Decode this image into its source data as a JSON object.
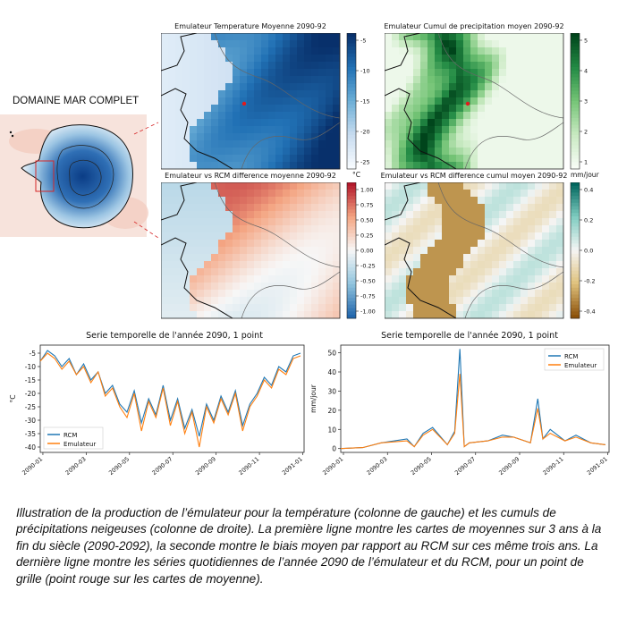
{
  "domain_label": "DOMAINE MAR COMPLET",
  "maps": [
    {
      "title": "Emulateur Temperature Moyenne 2090-92",
      "cbar_ticks": [
        "-5",
        "-10",
        "-15",
        "-20",
        "-25"
      ],
      "cbar_unit": "°C"
    },
    {
      "title": "Emulateur Cumul de precipitation moyen 2090-92",
      "cbar_ticks": [
        "5",
        "4",
        "3",
        "2",
        "1"
      ],
      "cbar_unit": "mm/jour"
    },
    {
      "title": "Emulateur vs RCM difference moyenne 2090-92",
      "cbar_ticks": [
        "1.00",
        "0.75",
        "0.50",
        "0.25",
        "0.00",
        "-0.25",
        "-0.50",
        "-0.75",
        "-1.00"
      ],
      "cbar_unit": ""
    },
    {
      "title": "Emulateur vs RCM difference cumul moyen 2090-92",
      "cbar_ticks": [
        "0.4",
        "0.2",
        "0.0",
        "-0.2",
        "-0.4"
      ],
      "cbar_unit": ""
    }
  ],
  "colors": {
    "blue_cmap": "#08306b",
    "green_cmap": "#00441b",
    "diverging_red": "#b2182b",
    "diverging_brown": "#8c510a",
    "rcm": "#1f77b4",
    "emulateur": "#ff7f0e",
    "marker": "#e31a1c"
  },
  "chart_data": [
    {
      "type": "line",
      "title": "Serie temporelle de l'année 2090, 1 point",
      "xlabel": "",
      "ylabel": "°C",
      "x_ticks": [
        "2090-01",
        "2090-03",
        "2090-05",
        "2090-07",
        "2090-09",
        "2090-11",
        "2091-01"
      ],
      "y_ticks": [
        -5,
        -10,
        -15,
        -20,
        -25,
        -30,
        -35,
        -40
      ],
      "ylim": [
        -42,
        -2
      ],
      "legend": "bottom-left",
      "legend_entries": [
        "RCM",
        "Emulateur"
      ],
      "x_days": [
        0,
        10,
        20,
        30,
        40,
        50,
        60,
        70,
        80,
        90,
        100,
        110,
        120,
        130,
        140,
        150,
        160,
        170,
        180,
        190,
        200,
        210,
        220,
        230,
        240,
        250,
        260,
        270,
        280,
        290,
        300,
        310,
        320,
        330,
        340,
        350,
        360
      ],
      "series": [
        {
          "name": "RCM",
          "values": [
            -8,
            -4,
            -6,
            -10,
            -7,
            -13,
            -9,
            -15,
            -12,
            -20,
            -17,
            -24,
            -27,
            -19,
            -31,
            -22,
            -28,
            -17,
            -30,
            -22,
            -33,
            -26,
            -36,
            -24,
            -30,
            -21,
            -27,
            -19,
            -32,
            -24,
            -20,
            -14,
            -17,
            -10,
            -12,
            -6,
            -5
          ]
        },
        {
          "name": "Emulateur",
          "values": [
            -8,
            -5,
            -7,
            -11,
            -8,
            -13,
            -10,
            -16,
            -12,
            -21,
            -18,
            -25,
            -29,
            -20,
            -34,
            -23,
            -29,
            -18,
            -32,
            -23,
            -35,
            -27,
            -40,
            -25,
            -31,
            -22,
            -28,
            -20,
            -34,
            -25,
            -21,
            -15,
            -18,
            -11,
            -13,
            -7,
            -6
          ]
        }
      ]
    },
    {
      "type": "line",
      "title": "Serie temporelle de l'année 2090, 1 point",
      "xlabel": "",
      "ylabel": "mm/jour",
      "x_ticks": [
        "2090-01",
        "2090-03",
        "2090-05",
        "2090-07",
        "2090-09",
        "2090-11",
        "2091-01"
      ],
      "y_ticks": [
        0,
        10,
        20,
        30,
        40,
        50
      ],
      "ylim": [
        -2,
        54
      ],
      "legend": "top-right",
      "legend_entries": [
        "RCM",
        "Emulateur"
      ],
      "x_days": [
        0,
        30,
        55,
        90,
        100,
        112,
        125,
        145,
        155,
        162,
        168,
        175,
        200,
        220,
        235,
        258,
        268,
        275,
        285,
        305,
        320,
        340,
        360
      ],
      "series": [
        {
          "name": "RCM",
          "values": [
            0,
            0.5,
            3,
            5,
            1,
            8,
            11,
            2,
            9,
            52,
            1,
            3,
            4,
            7,
            6,
            3,
            26,
            5,
            10,
            4,
            7,
            3,
            2
          ]
        },
        {
          "name": "Emulateur",
          "values": [
            0,
            0.5,
            3,
            4,
            1,
            7,
            10,
            2,
            8,
            39,
            1,
            3,
            4,
            6,
            6,
            3,
            21,
            5,
            8,
            4,
            6,
            3,
            2
          ]
        }
      ]
    }
  ],
  "caption": "Illustration de la production de l’émulateur pour la température (colonne de gauche) et les cumuls de précipitations neigeuses (colonne de droite). La première ligne montre les cartes de moyennes sur 3 ans à la fin du siècle (2090-2092), la seconde montre le biais moyen par rapport au RCM sur ces même trois ans. La dernière ligne montre les séries quotidiennes de l’année 2090 de l’émulateur et du RCM, pour un point de grille (point rouge sur les cartes de moyenne)."
}
